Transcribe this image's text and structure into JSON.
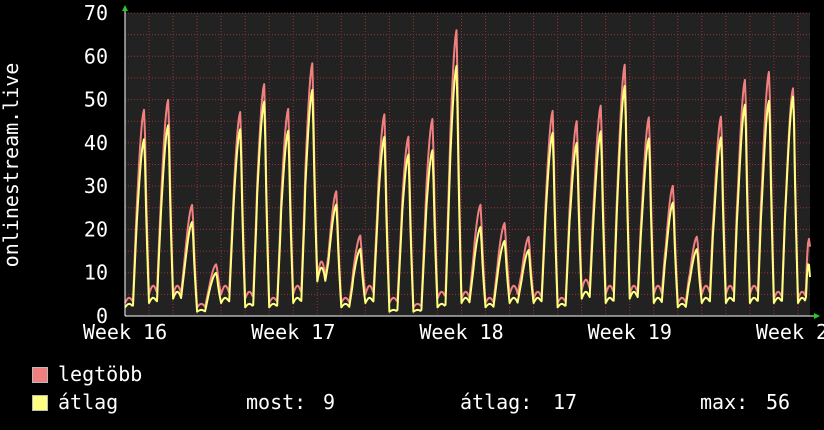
{
  "chart_data": {
    "type": "line",
    "title": "",
    "ylabel": "onlinestream.live",
    "ylim": [
      0,
      70
    ],
    "yticks": [
      0,
      10,
      20,
      30,
      40,
      50,
      60,
      70
    ],
    "x_range_days": [
      0,
      28.5
    ],
    "xticks": [
      {
        "label": "Week 16",
        "day": 0
      },
      {
        "label": "Week 17",
        "day": 7
      },
      {
        "label": "Week 18",
        "day": 14
      },
      {
        "label": "Week 19",
        "day": 21
      },
      {
        "label": "Week 20",
        "day": 28
      }
    ],
    "grid": true,
    "background": "#222222",
    "grid_color": "#aa3333",
    "series": [
      {
        "name": "legtöbb",
        "color": "#f08080",
        "daily_peaks": [
          49,
          51,
          26,
          12,
          47,
          53,
          47,
          57,
          28,
          18,
          45,
          40,
          44,
          64,
          25,
          21,
          18,
          47,
          45,
          49,
          59,
          47,
          31,
          19,
          48,
          57,
          59,
          55,
          57
        ],
        "daily_mins": [
          3,
          5,
          5,
          2,
          5,
          4,
          3,
          5,
          9,
          3,
          5,
          3,
          2,
          4,
          4,
          3,
          5,
          4,
          3,
          6,
          5,
          5,
          5,
          3,
          5,
          5,
          5,
          4,
          4
        ],
        "end_value": 16
      },
      {
        "name": "átlag",
        "color": "#ffff80",
        "daily_peaks": [
          42,
          45,
          22,
          10,
          43,
          49,
          42,
          51,
          25,
          15,
          40,
          36,
          37,
          56,
          20,
          17,
          15,
          42,
          40,
          43,
          54,
          42,
          27,
          16,
          43,
          51,
          52,
          53,
          52
        ],
        "daily_mins": [
          2,
          3,
          4,
          1,
          3,
          2,
          2,
          3,
          8,
          2,
          3,
          1,
          1,
          2,
          3,
          2,
          3,
          3,
          2,
          4,
          3,
          4,
          3,
          2,
          3,
          3,
          3,
          3,
          3
        ],
        "end_value": 9
      }
    ],
    "legend": {
      "position": "bottom-left",
      "items": [
        {
          "label": "legtöbb",
          "color": "#f08080"
        },
        {
          "label": "átlag",
          "color": "#ffff80"
        }
      ]
    },
    "stats": {
      "now_label": "most:",
      "now_value": "9",
      "avg_label": "átlag:",
      "avg_value": "17",
      "max_label": "max:",
      "max_value": "56"
    }
  }
}
